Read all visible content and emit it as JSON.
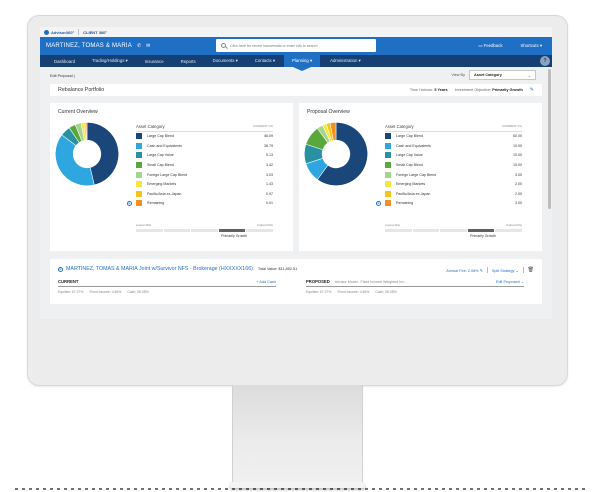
{
  "brand": {
    "logo": "Advisor360°",
    "product": "CLIENT 360°"
  },
  "header": {
    "client_name": "MARTINEZ, TOMAS & MARIA",
    "phone_icon": "phone-icon",
    "mail_icon": "mail-icon",
    "search_placeholder": "Click here for recent households or enter info to search",
    "feedback": "Feedback",
    "shortcuts": "Shortcuts ▾"
  },
  "nav": {
    "items": [
      {
        "label": "Dashboard"
      },
      {
        "label": "Trading/Holdings ▾"
      },
      {
        "label": "Insurance"
      },
      {
        "label": "Reports"
      },
      {
        "label": "Documents ▾"
      },
      {
        "label": "Contacts ▾"
      },
      {
        "label": "Planning ▾",
        "active": true
      },
      {
        "label": "Administration ▾"
      }
    ],
    "help": "?"
  },
  "subbar": {
    "breadcrumb": "Edit Proposal  |",
    "view_by_label": "View By",
    "view_by_value": "Asset Category"
  },
  "rebalance": {
    "title": "Rebalance Portfolio",
    "time_horizon_label": "Time Horizon:",
    "time_horizon_value": "5 Years",
    "objective_label": "Investment Objective:",
    "objective_value": "Primarily Growth"
  },
  "colors": {
    "large_cap_blend": "#1b4679",
    "cash": "#2ea7e0",
    "large_cap_value": "#2892a3",
    "small_cap_blend": "#5aa83c",
    "foreign_large_cap": "#a6d38e",
    "emerging": "#f2e73c",
    "pacific": "#f7c514",
    "remaining": "#f29123",
    "brand_blue": "#1f6fc5",
    "nav_navy": "#163f73"
  },
  "current": {
    "title": "Current Overview",
    "legend_header": "Asset Category",
    "column_header": "CURRENT (%)",
    "rows": [
      {
        "label": "Large Cap Blend",
        "value": "46.09"
      },
      {
        "label": "Cash and Equivalents",
        "value": "38.79"
      },
      {
        "label": "Large Cap Value",
        "value": "5.13"
      },
      {
        "label": "Small Cap Blend",
        "value": "3.42"
      },
      {
        "label": "Foreign Large Cap Blend",
        "value": "3.03"
      },
      {
        "label": "Emerging Markets",
        "value": "1.43"
      },
      {
        "label": "Pacific/Asia ex-Japan",
        "value": "0.97"
      },
      {
        "label": "Remaining",
        "value": "0.01"
      }
    ],
    "risk": {
      "low": "Lowest Risk",
      "high": "Highest Risk",
      "label": "Primarily Growth",
      "active_segment": 4,
      "segments": 5
    }
  },
  "proposal": {
    "title": "Proposal Overview",
    "legend_header": "Asset Category",
    "column_header": "CURRENT (%)",
    "rows": [
      {
        "label": "Large Cap Blend",
        "value": "60.00"
      },
      {
        "label": "Cash and Equivalents",
        "value": "10.00"
      },
      {
        "label": "Large Cap Value",
        "value": "10.00"
      },
      {
        "label": "Small Cap Blend",
        "value": "10.00"
      },
      {
        "label": "Foreign Large Cap Blend",
        "value": "3.00"
      },
      {
        "label": "Emerging Markets",
        "value": "2.00"
      },
      {
        "label": "Pacific/Asia ex-Japan",
        "value": "2.00"
      },
      {
        "label": "Remaining",
        "value": "3.00"
      }
    ],
    "risk": {
      "low": "Lowest Risk",
      "high": "Highest Risk",
      "label": "Primarily Growth",
      "active_segment": 4,
      "segments": 5
    }
  },
  "account": {
    "name": "MARTINEZ, TOMAS & MARIA Joint w/Survivor NFS - Brokerage (HXXXXX166)",
    "total_value": "Total Value: $11,852.51",
    "annual_fee": "Annual Fee: 2.08% ✎",
    "split_strategy": "Split Strategy ⌄",
    "current": {
      "heading": "CURRENT",
      "action": "+ Add Cash",
      "equities": "Equities: 67.27%",
      "fixed_income": "Fixed Income: 4.65%",
      "cash": "Cash: 28.05%"
    },
    "proposed": {
      "heading": "PROPOSED",
      "model": "Advisor Model : Fixed Income Weighted Inv...",
      "action": "Edit Proposed ⌄",
      "equities": "Equities: 67.27%",
      "fixed_income": "Fixed Income: 4.65%",
      "cash": "Cash: 28.05%"
    }
  }
}
